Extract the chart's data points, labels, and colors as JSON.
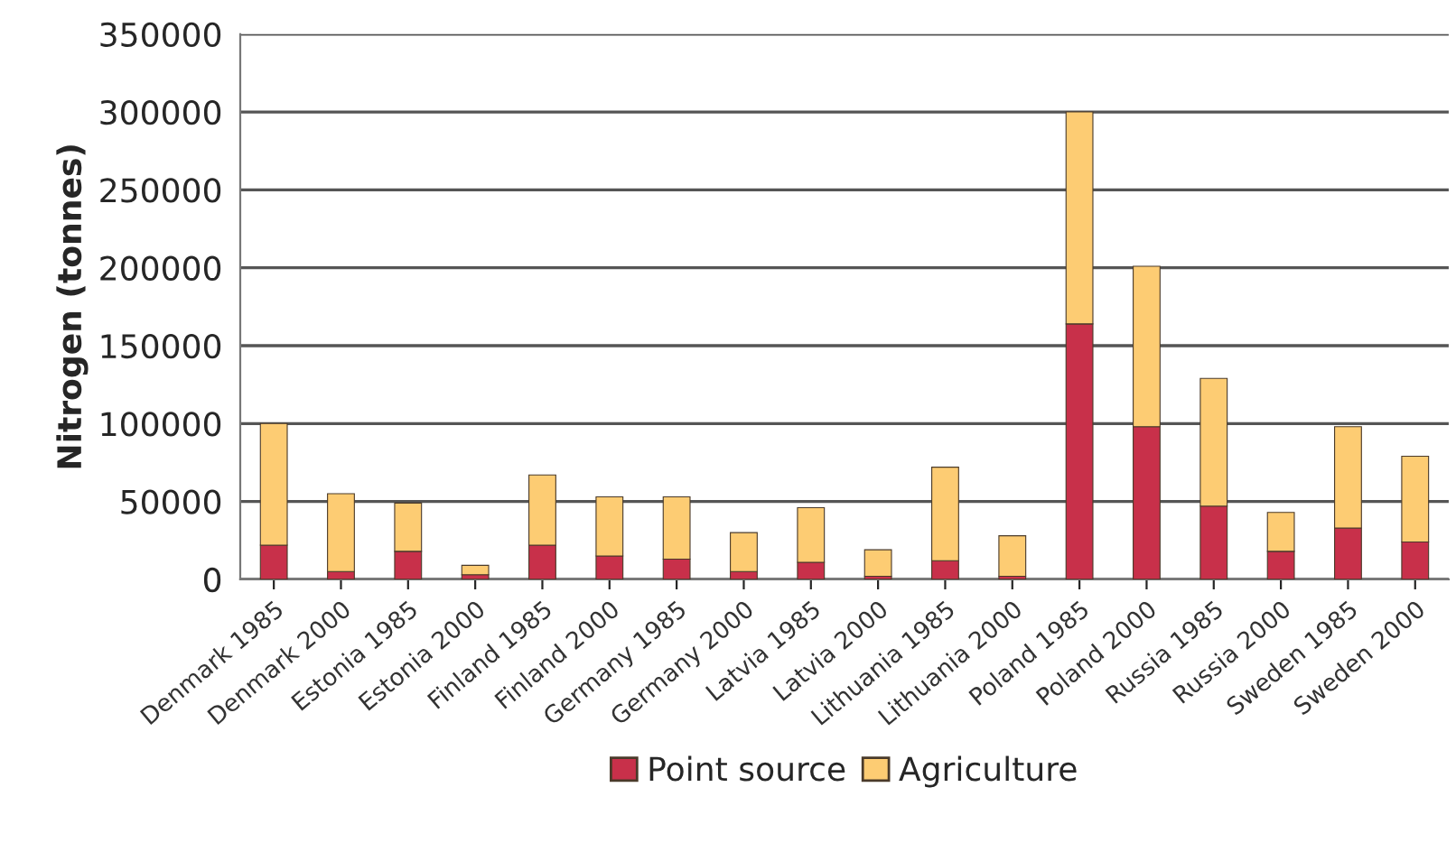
{
  "chart_data": {
    "type": "bar",
    "ylabel": "Nitrogen (tonnes)",
    "stacked": true,
    "categories": [
      "Denmark 1985",
      "Denmark 2000",
      "Estonia 1985",
      "Estonia 2000",
      "Finland 1985",
      "Finland 2000",
      "Germany 1985",
      "Germany 2000",
      "Latvia 1985",
      "Latvia 2000",
      "Lithuania 1985",
      "Lithuania 2000",
      "Poland 1985",
      "Poland 2000",
      "Russia 1985",
      "Russia 2000",
      "Sweden 1985",
      "Sweden 2000"
    ],
    "series": [
      {
        "name": "Point source",
        "color": "#c8304a",
        "values": [
          22000,
          5000,
          18000,
          3000,
          22000,
          15000,
          13000,
          5000,
          11000,
          2000,
          12000,
          2000,
          164000,
          98000,
          47000,
          18000,
          33000,
          24000
        ]
      },
      {
        "name": "Agriculture",
        "color": "#fdcc73",
        "values": [
          78000,
          50000,
          31000,
          6000,
          45000,
          38000,
          40000,
          25000,
          35000,
          17000,
          60000,
          26000,
          136000,
          103000,
          82000,
          25000,
          65000,
          55000
        ]
      }
    ],
    "ylim": [
      0,
      350000
    ],
    "yticks": [
      0,
      50000,
      100000,
      150000,
      200000,
      250000,
      300000,
      350000
    ],
    "grid": "y",
    "legend": "bottom"
  }
}
